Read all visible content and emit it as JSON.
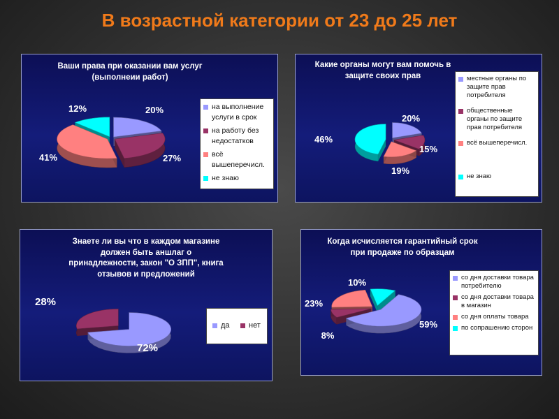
{
  "slide_title": "В возрастной категории от 23 до 25 лет",
  "chart_data": [
    {
      "type": "pie",
      "title": "Ваши права при оказании вам услуг (выполнеии работ)",
      "title_lines": [
        "Ваши права при оказании вам услуг",
        "(выполнеии работ)"
      ],
      "series": [
        {
          "name": "на выполнение услуги в срок",
          "value": 20,
          "label": "20%",
          "color": "#9999ff"
        },
        {
          "name": "на работу без недостатков",
          "value": 27,
          "label": "27%",
          "color": "#993366"
        },
        {
          "name": "всё вышеперечисл.",
          "value": 41,
          "label": "41%",
          "color": "#ff8080"
        },
        {
          "name": "не знаю",
          "value": 12,
          "label": "12%",
          "color": "#00ffff"
        }
      ]
    },
    {
      "type": "pie",
      "title": "Какие органы могут вам помочь в защите своих прав",
      "title_lines": [
        "Какие органы могут вам помочь в",
        "защите своих прав"
      ],
      "series": [
        {
          "name": "местные органы по защите прав потребителя",
          "value": 20,
          "label": "20%",
          "color": "#9999ff"
        },
        {
          "name": "общественные органы по защите прав потребителя",
          "value": 15,
          "label": "15%",
          "color": "#993366"
        },
        {
          "name": "всё вышеперечисл.",
          "value": 19,
          "label": "19%",
          "color": "#ff8080"
        },
        {
          "name": "не знаю",
          "value": 46,
          "label": "46%",
          "color": "#00ffff"
        }
      ]
    },
    {
      "type": "pie",
      "title": "Знаете ли вы что в каждом магазине должен быть аншлаг о принадлежности, закон \"О ЗПП\", книга отзывов и предложений",
      "title_lines": [
        "Знаете ли вы что в каждом магазине",
        "должен быть аншлаг о",
        "принадлежности, закон \"О ЗПП\", книга",
        "отзывов и предложений"
      ],
      "series": [
        {
          "name": "да",
          "value": 72,
          "label": "72%",
          "color": "#9999ff"
        },
        {
          "name": "нет",
          "value": 28,
          "label": "28%",
          "color": "#993366"
        }
      ]
    },
    {
      "type": "pie",
      "title": "Когда исчисляется гарантийный срок при продаже по образцам",
      "title_lines": [
        "Когда исчисляется гарантийный срок",
        "при продаже по образцам"
      ],
      "series": [
        {
          "name": "со дня доставки товара потребителю",
          "value": 59,
          "label": "59%",
          "color": "#9999ff"
        },
        {
          "name": "со дня доставки товара в магазин",
          "value": 8,
          "label": "8%",
          "color": "#993366"
        },
        {
          "name": "со дня оплаты товара",
          "value": 23,
          "label": "23%",
          "color": "#ff8080"
        },
        {
          "name": "по сопрашению сторон",
          "value": 10,
          "label": "10%",
          "color": "#00ffff"
        }
      ]
    }
  ]
}
